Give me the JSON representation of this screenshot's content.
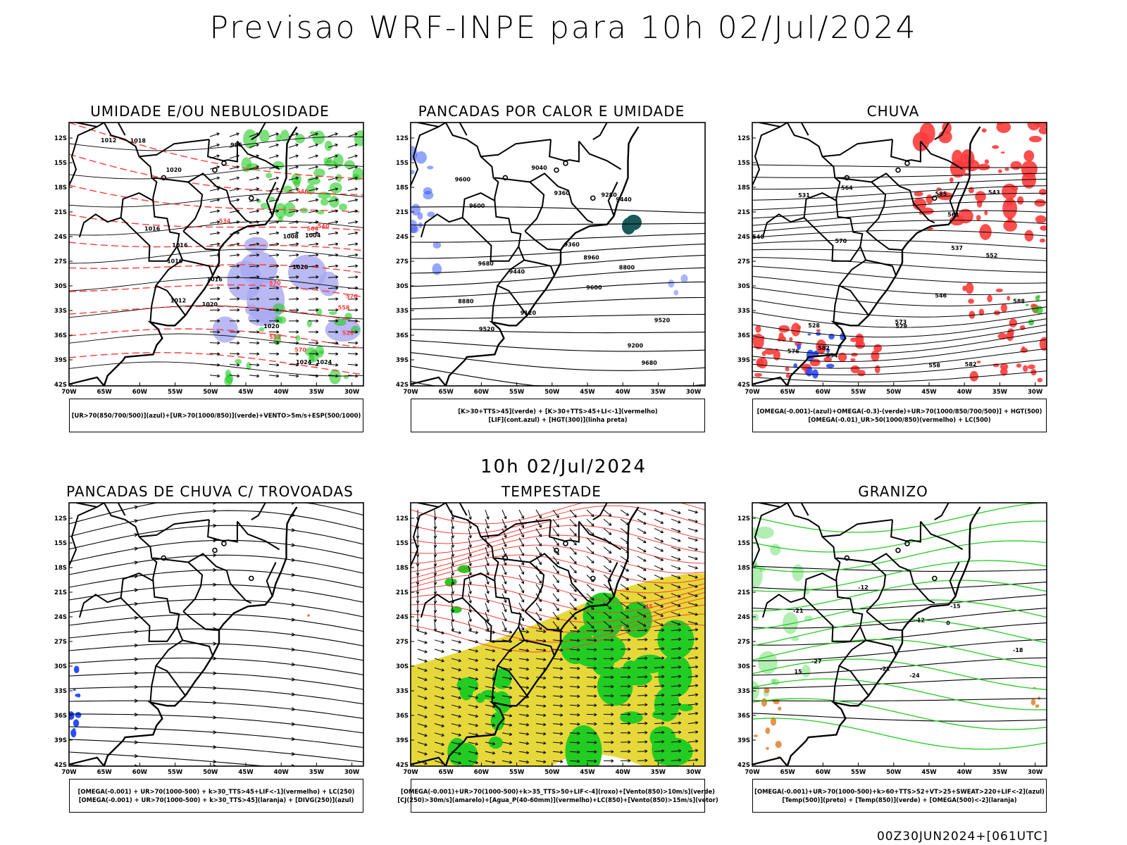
{
  "header": {
    "title": "Previsao WRF-INPE  para 10h 02/Jul/2024"
  },
  "mid_date": "10h 02/Jul/2024",
  "footer": {
    "stamp": "00Z30JUN2024+[061UTC]"
  },
  "axes": {
    "lat_labels": [
      "12S",
      "15S",
      "18S",
      "21S",
      "24S",
      "27S",
      "30S",
      "33S",
      "36S",
      "39S",
      "42S"
    ],
    "lon_labels": [
      "70W",
      "65W",
      "60W",
      "55W",
      "50W",
      "45W",
      "40W",
      "35W",
      "30W"
    ]
  },
  "colors": {
    "red": "#ff3b3b",
    "green": "#22cc22",
    "blue": "#2a4cff",
    "lavender": "#a8a8f0",
    "yellow": "#e6d83a",
    "orange": "#e07820",
    "teal": "#1a5a5a"
  },
  "panels": [
    {
      "title": "UMIDADE E/OU NEBULOSIDADE",
      "legend": [
        "[UR>70(850/700/500)](azul)+[UR>70(1000/850)](verde)+VENTO>5m/s+ESP(500/1000)"
      ],
      "contour_labels": [
        "1016",
        "1016",
        "1018",
        "1020",
        "1024",
        "1020",
        "1020",
        "1016",
        "1012",
        "1008",
        "1004",
        "996",
        "1012",
        "1024",
        "1016",
        "1020"
      ],
      "red_labels": [
        "570",
        "570",
        "564",
        "558",
        "552",
        "546",
        "540",
        "534",
        "528",
        "570"
      ]
    },
    {
      "title": "PANCADAS POR CALOR E UMIDADE",
      "legend": [
        "[K>30+TTS>45](verde) + [K>30+TTS>45+LI<-1](vermelho)",
        "[LIF](cont.azul) + [HGT(300)](linha preta)"
      ],
      "contour_labels": [
        "9680",
        "9680",
        "9600",
        "9600",
        "9520",
        "9600",
        "9520",
        "9440",
        "9440",
        "9360",
        "9280",
        "9200",
        "9120",
        "9040",
        "8960",
        "8880",
        "8800",
        "9360"
      ]
    },
    {
      "title": "CHUVA",
      "legend": [
        "[OMEGA(-0.001)-(azul)+OMEGA(-0.3)-(verde)+UR>70(1000/850/700/500)] + HGT(500)",
        "[OMEGA(-0.01)_UR>50(1000/850)(vermelho) + LC(500)"
      ],
      "contour_labels": [
        "588",
        "582",
        "579",
        "576",
        "573",
        "570",
        "564",
        "561",
        "558",
        "552",
        "546",
        "543",
        "540",
        "537",
        "534",
        "531",
        "528",
        "582",
        "585"
      ]
    },
    {
      "title": "PANCADAS DE CHUVA C/ TROVOADAS",
      "legend": [
        "[OMEGA(-0.001) + UR>70(1000-500) + k>30_TTS>45+LIF<-1](vermelho) + LC(250)",
        "[OMEGA(-0.001) + UR>70(1000-500) + k>30_TTS>45](laranja) + [DIVG(250)](azul)"
      ],
      "contour_labels": []
    },
    {
      "title": "TEMPESTADE",
      "legend": [
        "[OMEGA(-0.001)+UR>70(1000-500)+k>35_TTS>50+LIF<-4](roxo)+[Vento(850)>10m/s](verde)",
        "[CJ(250)>30m/s](amarelo)+[Agua_P(40-60mm)](vermelho)+LC(850)+[Vento(850)>15m/s](vetor)"
      ],
      "contour_labels": [
        "45"
      ]
    },
    {
      "title": "GRANIZO",
      "legend": [
        "[OMEGA(-0.001)+UR>70(1000-500)+k>60+TTS>52+VT>25+SWEAT>220+LIF<-2](azul)",
        "[Temp(500)](preto) + [Temp(850)](verde) + [OMEGA(500)<-2](laranja)"
      ],
      "contour_labels": [
        "-12",
        "-15",
        "-18",
        "-21",
        "-24",
        "-27",
        "-21",
        "0",
        "15",
        "12"
      ]
    }
  ]
}
